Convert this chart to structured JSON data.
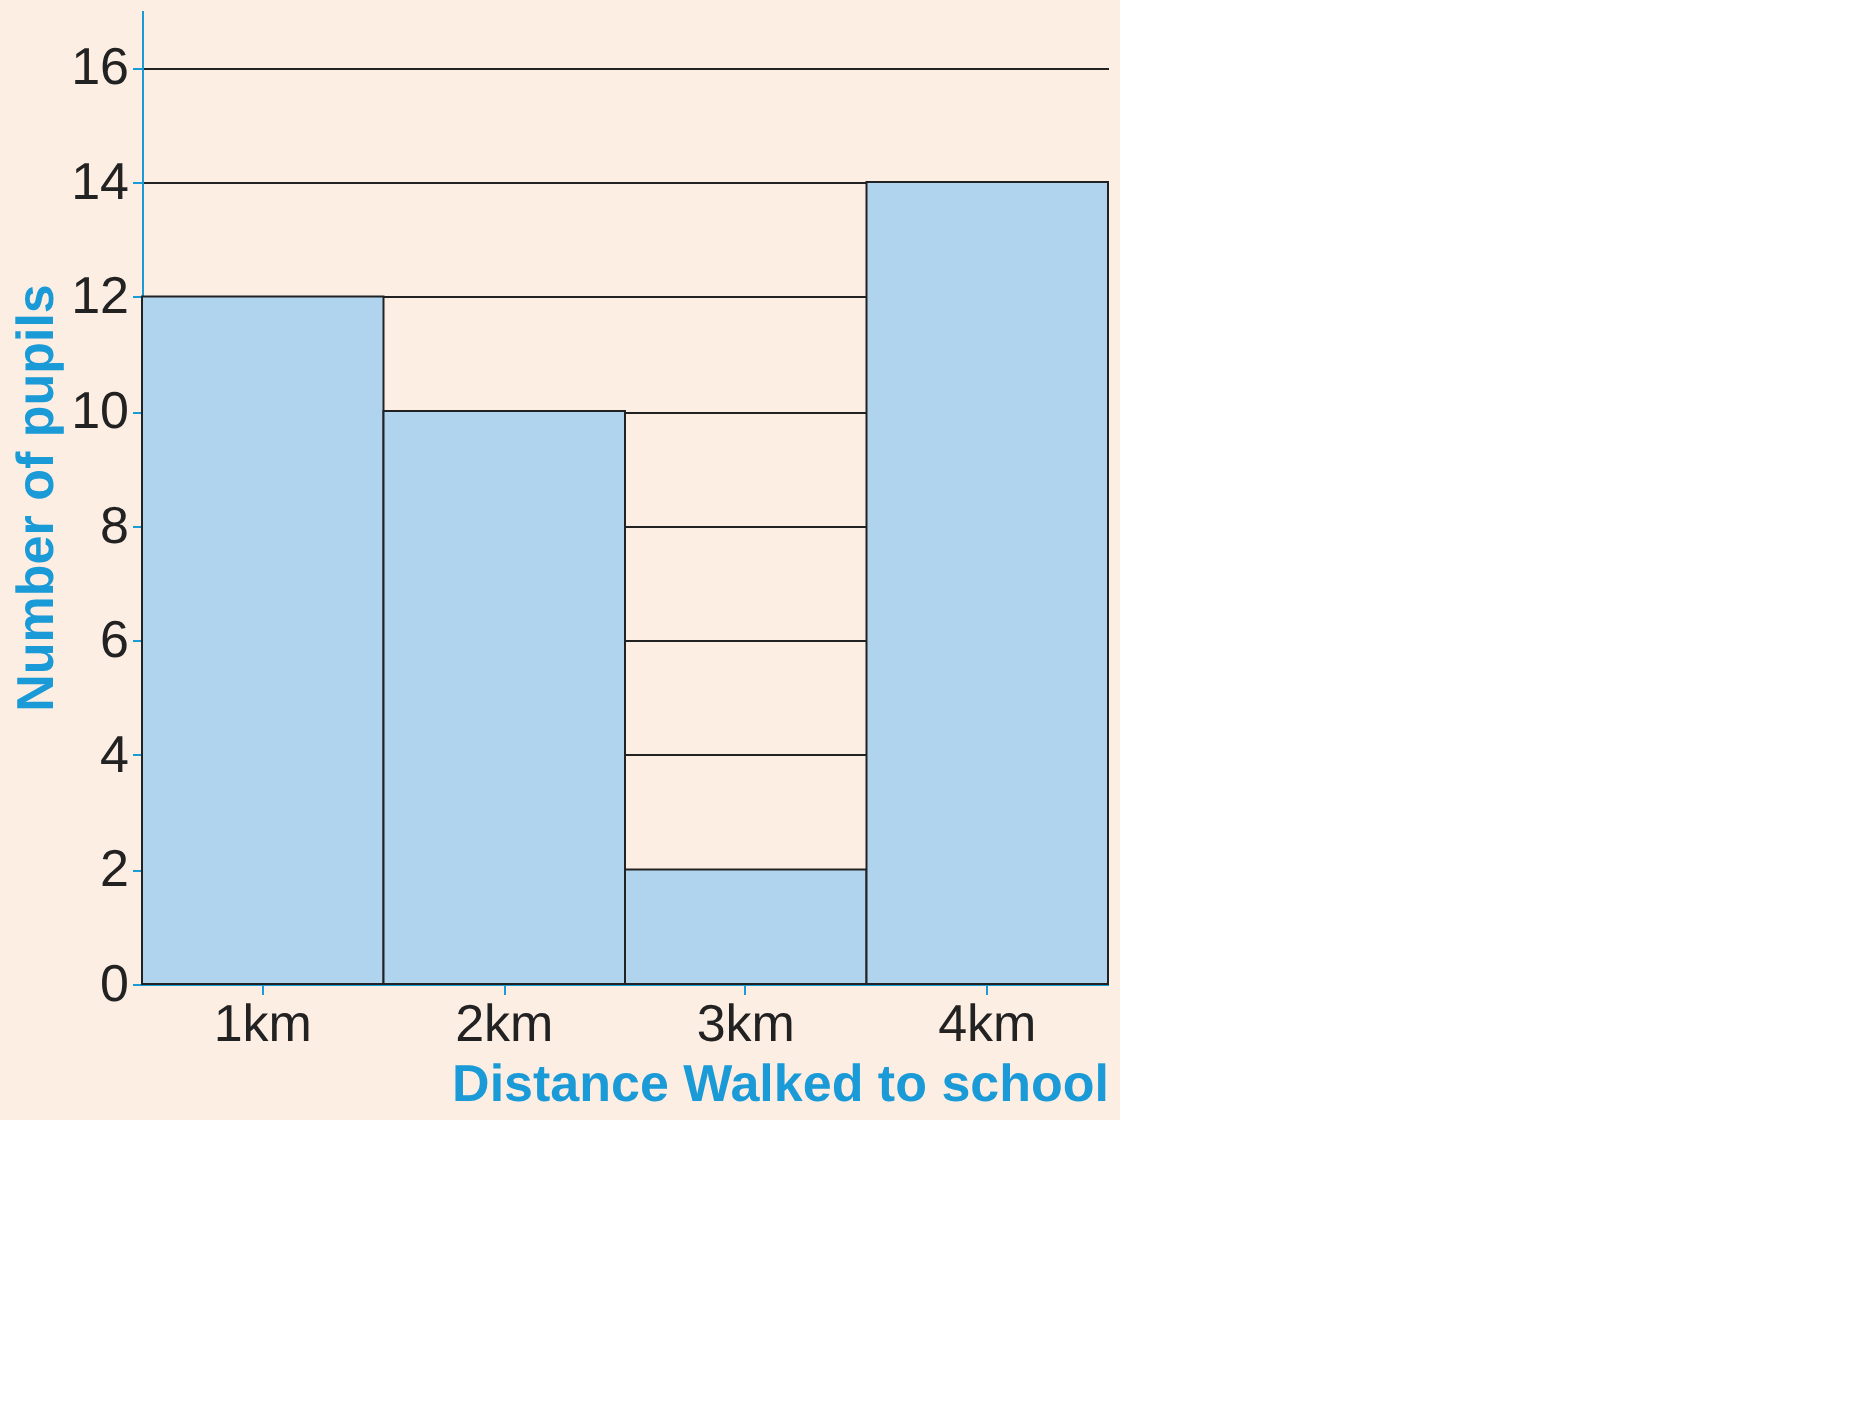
{
  "chart_data": {
    "type": "bar",
    "categories": [
      "1km",
      "2km",
      "3km",
      "4km"
    ],
    "values": [
      12,
      10,
      2,
      14
    ],
    "color": "#b0d4ee",
    "xlabel": "Distance Walked to school",
    "ylabel": "Number of pupils",
    "ylim": [
      0,
      17
    ],
    "yticks": [
      0,
      2,
      4,
      6,
      8,
      10,
      12,
      14,
      16
    ],
    "grid": "y"
  }
}
